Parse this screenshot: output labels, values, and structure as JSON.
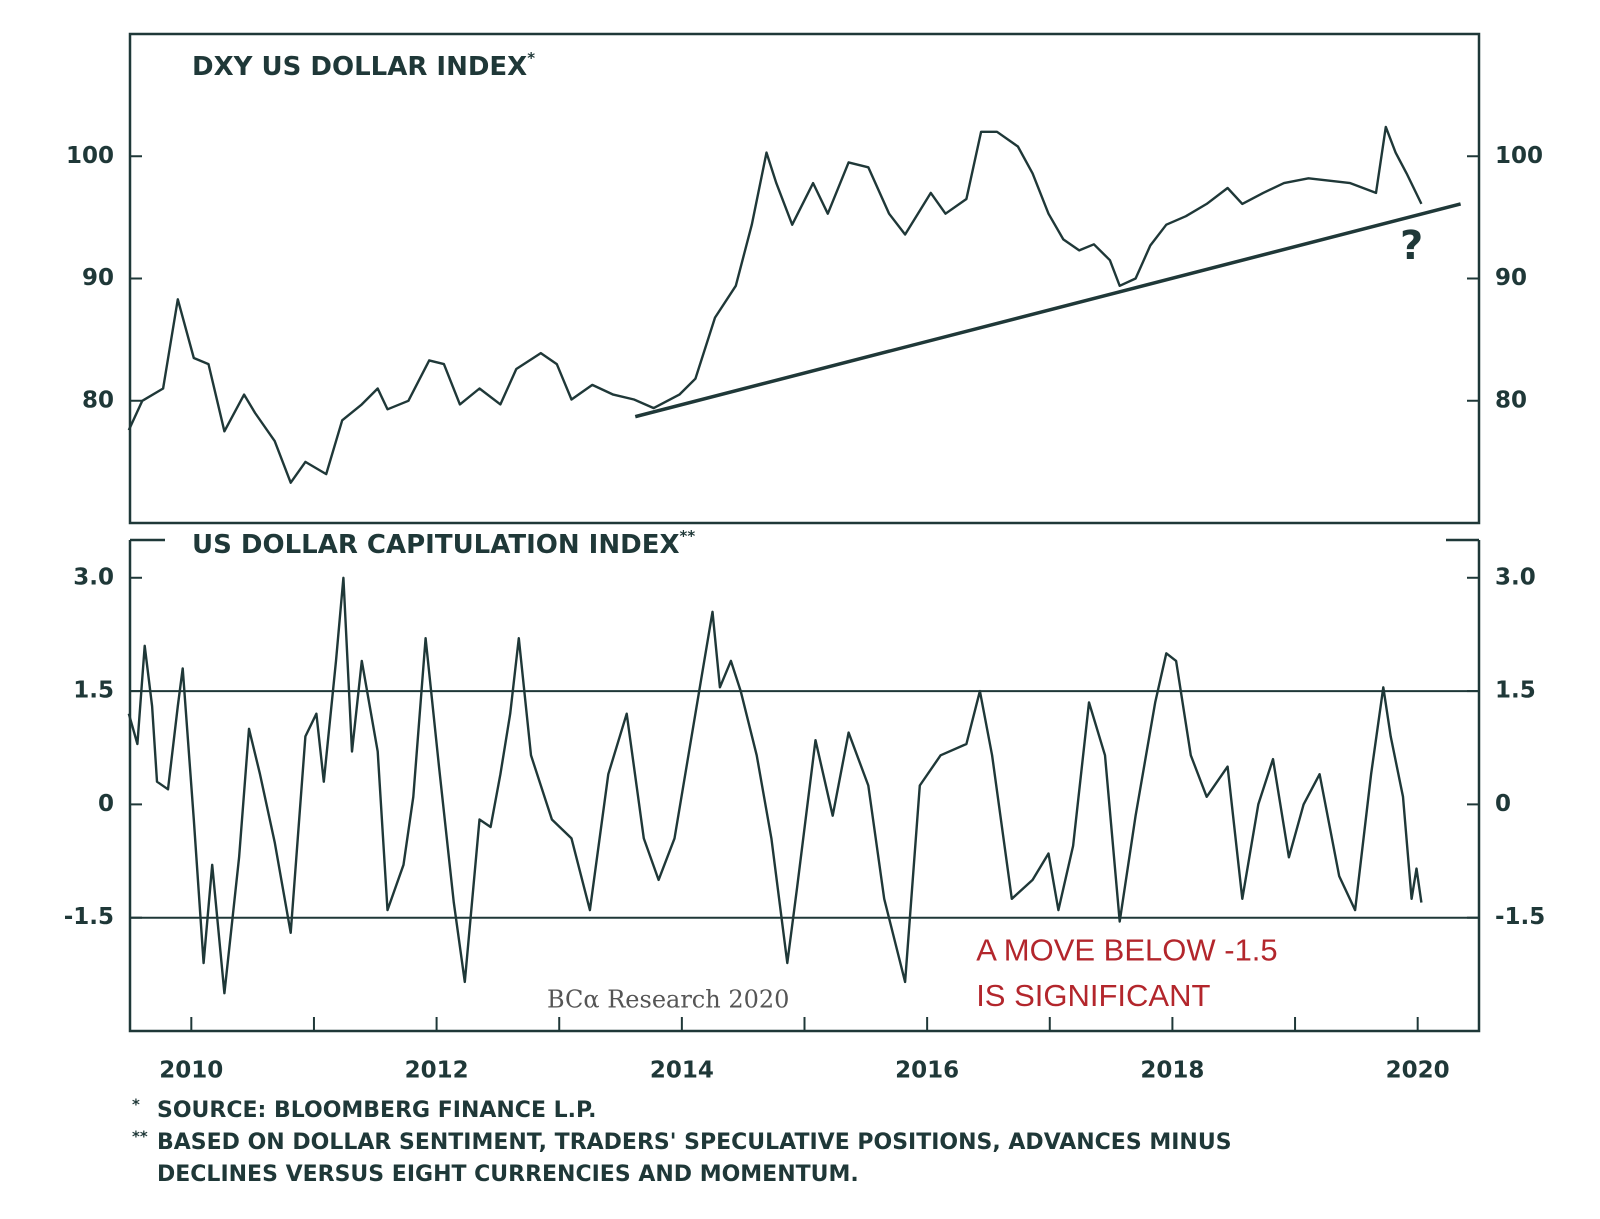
{
  "chart_data": [
    {
      "type": "line",
      "title": "DXY US DOLLAR INDEX",
      "title_marker": "*",
      "color": "#1f3838",
      "xlim": [
        2009.5,
        2020.5
      ],
      "ylim": [
        70,
        110
      ],
      "yticks": [
        80,
        90,
        100
      ],
      "x": [
        2009.49,
        2009.6,
        2009.77,
        2009.89,
        2010.02,
        2010.14,
        2010.27,
        2010.43,
        2010.52,
        2010.68,
        2010.81,
        2010.93,
        2011.1,
        2011.23,
        2011.39,
        2011.52,
        2011.6,
        2011.77,
        2011.94,
        2012.06,
        2012.19,
        2012.35,
        2012.52,
        2012.65,
        2012.85,
        2012.98,
        2013.1,
        2013.27,
        2013.44,
        2013.61,
        2013.77,
        2013.98,
        2014.11,
        2014.27,
        2014.44,
        2014.57,
        2014.69,
        2014.77,
        2014.9,
        2015.07,
        2015.19,
        2015.36,
        2015.52,
        2015.69,
        2015.82,
        2016.03,
        2016.15,
        2016.32,
        2016.44,
        2016.57,
        2016.74,
        2016.86,
        2016.99,
        2017.11,
        2017.24,
        2017.36,
        2017.49,
        2017.57,
        2017.7,
        2017.82,
        2017.95,
        2018.11,
        2018.28,
        2018.45,
        2018.57,
        2018.74,
        2018.91,
        2019.11,
        2019.28,
        2019.45,
        2019.66,
        2019.74,
        2019.82,
        2019.91,
        2020.03
      ],
      "values": [
        77.6,
        80,
        81,
        88.3,
        83.5,
        83,
        77.5,
        80.5,
        79,
        76.7,
        73.3,
        75,
        74,
        78.4,
        79.7,
        81,
        79.3,
        80,
        83.3,
        83,
        79.7,
        81,
        79.7,
        82.6,
        83.9,
        83,
        80.1,
        81.3,
        80.5,
        80.1,
        79.4,
        80.5,
        81.8,
        86.8,
        89.4,
        94.4,
        100.3,
        97.8,
        94.4,
        97.8,
        95.3,
        99.5,
        99.1,
        95.3,
        93.6,
        97,
        95.3,
        96.5,
        102,
        102,
        100.8,
        98.6,
        95.3,
        93.2,
        92.3,
        92.8,
        91.5,
        89.4,
        90,
        92.7,
        94.4,
        95.1,
        96.1,
        97.4,
        96.1,
        97,
        97.8,
        98.2,
        98,
        97.8,
        97,
        102.4,
        100.3,
        98.6,
        96.1
      ],
      "trendline": {
        "x": [
          2013.62,
          2020.35
        ],
        "y": [
          78.7,
          96.1
        ]
      },
      "annotation": {
        "text": "?",
        "x": 2019.95,
        "y": 92.5
      }
    },
    {
      "type": "line",
      "title": "US DOLLAR CAPITULATION INDEX",
      "title_marker": "**",
      "color": "#1f3838",
      "xlim": [
        2009.5,
        2020.5
      ],
      "ylim": [
        -3,
        3.5
      ],
      "yticks": [
        {
          "value": 3,
          "label": "3.0"
        },
        1.5,
        0,
        -1.5
      ],
      "xticks": [
        2010,
        2012,
        2014,
        2016,
        2018,
        2020
      ],
      "xminorticks": [
        2011,
        2013,
        2015,
        2017,
        2019
      ],
      "hlines": [
        1.5,
        -1.5
      ],
      "x": [
        2009.49,
        2009.56,
        2009.62,
        2009.68,
        2009.72,
        2009.81,
        2009.89,
        2009.93,
        2010.02,
        2010.1,
        2010.17,
        2010.27,
        2010.39,
        2010.47,
        2010.56,
        2010.68,
        2010.81,
        2010.93,
        2011.02,
        2011.08,
        2011.18,
        2011.24,
        2011.31,
        2011.39,
        2011.52,
        2011.6,
        2011.73,
        2011.81,
        2011.91,
        2012.02,
        2012.14,
        2012.23,
        2012.35,
        2012.44,
        2012.52,
        2012.6,
        2012.67,
        2012.77,
        2012.94,
        2013.1,
        2013.25,
        2013.4,
        2013.55,
        2013.69,
        2013.81,
        2013.94,
        2014.11,
        2014.25,
        2014.31,
        2014.4,
        2014.48,
        2014.61,
        2014.73,
        2014.86,
        2014.94,
        2015.09,
        2015.23,
        2015.36,
        2015.52,
        2015.65,
        2015.82,
        2015.94,
        2016.11,
        2016.32,
        2016.43,
        2016.53,
        2016.69,
        2016.86,
        2016.99,
        2017.07,
        2017.19,
        2017.32,
        2017.45,
        2017.57,
        2017.7,
        2017.86,
        2017.95,
        2018.03,
        2018.15,
        2018.28,
        2018.45,
        2018.57,
        2018.7,
        2018.82,
        2018.95,
        2019.07,
        2019.2,
        2019.36,
        2019.49,
        2019.62,
        2019.72,
        2019.78,
        2019.88,
        2019.95,
        2019.99,
        2020.03
      ],
      "values": [
        1.2,
        0.8,
        2.1,
        1.3,
        0.3,
        0.2,
        1.3,
        1.8,
        -0.2,
        -2.1,
        -0.8,
        -2.5,
        -0.7,
        1.0,
        0.4,
        -0.5,
        -1.7,
        0.9,
        1.2,
        0.3,
        1.9,
        3.0,
        0.7,
        1.9,
        0.7,
        -1.4,
        -0.8,
        0.1,
        2.2,
        0.5,
        -1.3,
        -2.35,
        -0.2,
        -0.3,
        0.4,
        1.2,
        2.2,
        0.65,
        -0.2,
        -0.45,
        -1.4,
        0.4,
        1.2,
        -0.45,
        -1.0,
        -0.45,
        1.2,
        2.55,
        1.55,
        1.9,
        1.5,
        0.65,
        -0.45,
        -2.1,
        -1.1,
        0.85,
        -0.15,
        0.95,
        0.25,
        -1.25,
        -2.35,
        0.25,
        0.65,
        0.8,
        1.5,
        0.65,
        -1.25,
        -1.0,
        -0.65,
        -1.4,
        -0.55,
        1.35,
        0.65,
        -1.55,
        -0.15,
        1.35,
        2.0,
        1.9,
        0.65,
        0.1,
        0.5,
        -1.25,
        0.0,
        0.6,
        -0.7,
        0.0,
        0.4,
        -0.95,
        -1.4,
        0.4,
        1.55,
        0.9,
        0.1,
        -1.25,
        -0.85,
        -1.3
      ],
      "annotations": [
        {
          "text": "A MOVE BELOW -1.5",
          "x": 2016.4,
          "y": -1.96
        },
        {
          "text": "IS SIGNIFICANT",
          "x": 2016.4,
          "y": -2.56
        }
      ],
      "watermark": {
        "text": "BCα Research 2020",
        "x": 2012.9,
        "y": -2.6
      }
    }
  ],
  "footnotes": [
    {
      "marker": "*",
      "lines": [
        "SOURCE: BLOOMBERG FINANCE L.P."
      ]
    },
    {
      "marker": "**",
      "lines": [
        "BASED ON DOLLAR SENTIMENT, TRADERS' SPECULATIVE POSITIONS, ADVANCES MINUS",
        "DECLINES VERSUS EIGHT CURRENCIES AND MOMENTUM."
      ]
    }
  ]
}
